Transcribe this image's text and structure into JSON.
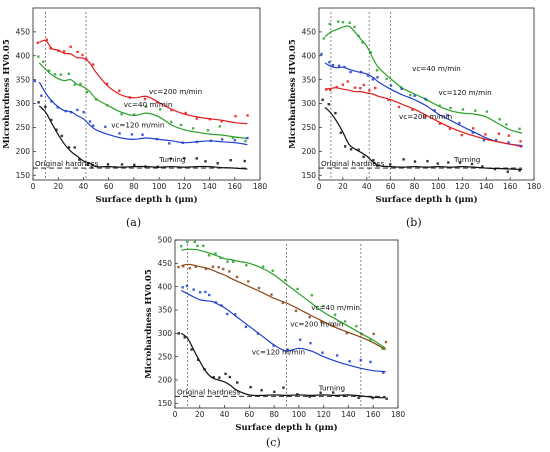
{
  "chart_data": [
    {
      "type": "line",
      "panel_label": "(a)",
      "xlabel": "Surface depth h (μm)",
      "ylabel": "Microhardness HV0.05",
      "xlim": [
        0,
        180
      ],
      "ylim": [
        140,
        500
      ],
      "xticks": [
        0,
        20,
        40,
        60,
        80,
        100,
        120,
        140,
        160,
        180
      ],
      "yticks": [
        150,
        200,
        250,
        300,
        350,
        400,
        450
      ],
      "original_hardness": 165,
      "original_hardness_label": "Original hardness",
      "vlines": [
        10,
        42
      ],
      "series": [
        {
          "name": "vc=200 m/min",
          "color": "#e41a1c",
          "x": [
            5,
            10,
            15,
            20,
            25,
            30,
            35,
            40,
            45,
            50,
            60,
            70,
            80,
            90,
            100,
            110,
            120,
            130,
            140,
            150,
            160,
            170
          ],
          "y": [
            428,
            432,
            415,
            412,
            405,
            404,
            396,
            395,
            385,
            365,
            335,
            318,
            312,
            315,
            302,
            288,
            278,
            272,
            268,
            265,
            260,
            258
          ],
          "label_at": [
            92,
            320
          ]
        },
        {
          "name": "vc=40 m/min",
          "color": "#2aa02a",
          "x": [
            5,
            10,
            15,
            20,
            25,
            30,
            35,
            40,
            45,
            50,
            60,
            70,
            80,
            90,
            100,
            110,
            120,
            130,
            140,
            150,
            160,
            170
          ],
          "y": [
            385,
            372,
            360,
            352,
            348,
            350,
            340,
            335,
            325,
            310,
            295,
            282,
            275,
            280,
            272,
            255,
            245,
            240,
            236,
            234,
            230,
            227
          ],
          "label_at": [
            72,
            293
          ]
        },
        {
          "name": "vc=120 m/min",
          "color": "#1f3fd0",
          "x": [
            5,
            10,
            15,
            20,
            25,
            30,
            35,
            40,
            45,
            50,
            60,
            70,
            80,
            90,
            100,
            110,
            120,
            130,
            140,
            150,
            160,
            170
          ],
          "y": [
            345,
            322,
            305,
            293,
            285,
            283,
            275,
            268,
            255,
            245,
            235,
            228,
            225,
            228,
            225,
            222,
            218,
            220,
            222,
            220,
            218,
            214
          ],
          "label_at": [
            62,
            250
          ]
        },
        {
          "name": "Turning",
          "color": "#111111",
          "x": [
            5,
            10,
            15,
            20,
            25,
            30,
            35,
            40,
            45,
            50,
            60,
            70,
            80,
            90,
            100,
            110,
            120,
            130,
            140,
            150,
            160,
            170
          ],
          "y": [
            295,
            282,
            258,
            235,
            215,
            200,
            190,
            180,
            175,
            168,
            168,
            167,
            168,
            168,
            167,
            168,
            167,
            168,
            168,
            166,
            165,
            163
          ],
          "label_at": [
            100,
            178
          ]
        }
      ]
    },
    {
      "type": "line",
      "panel_label": "(b)",
      "xlabel": "Surface depth h (μm)",
      "ylabel": "Microhardness HV0.05",
      "xlim": [
        0,
        180
      ],
      "ylim": [
        140,
        500
      ],
      "xticks": [
        0,
        20,
        40,
        60,
        80,
        100,
        120,
        140,
        160,
        180
      ],
      "yticks": [
        150,
        200,
        250,
        300,
        350,
        400,
        450
      ],
      "original_hardness": 165,
      "original_hardness_label": "Original hardness",
      "vlines": [
        10,
        42,
        60
      ],
      "series": [
        {
          "name": "vc=40 m/min",
          "color": "#2aa02a",
          "x": [
            5,
            10,
            15,
            20,
            25,
            30,
            35,
            40,
            45,
            50,
            60,
            70,
            80,
            90,
            100,
            110,
            120,
            130,
            140,
            150,
            160,
            170
          ],
          "y": [
            440,
            450,
            455,
            460,
            462,
            450,
            435,
            420,
            395,
            375,
            352,
            332,
            320,
            308,
            295,
            285,
            280,
            278,
            272,
            258,
            245,
            238
          ],
          "label_at": [
            78,
            368
          ]
        },
        {
          "name": "vc=120 m/min",
          "color": "#1f3fd0",
          "x": [
            5,
            10,
            15,
            20,
            25,
            30,
            35,
            40,
            45,
            50,
            60,
            70,
            80,
            90,
            100,
            110,
            120,
            130,
            140,
            150,
            160,
            170
          ],
          "y": [
            385,
            378,
            375,
            376,
            372,
            368,
            365,
            362,
            355,
            345,
            330,
            318,
            308,
            295,
            278,
            265,
            252,
            240,
            228,
            220,
            215,
            212
          ],
          "label_at": [
            100,
            318
          ]
        },
        {
          "name": "vc=200 m/min",
          "color": "#e41a1c",
          "x": [
            5,
            10,
            15,
            20,
            25,
            30,
            35,
            40,
            45,
            50,
            60,
            70,
            80,
            90,
            100,
            110,
            120,
            130,
            140,
            150,
            160,
            170
          ],
          "y": [
            330,
            332,
            333,
            330,
            328,
            325,
            325,
            322,
            320,
            315,
            308,
            298,
            288,
            275,
            262,
            250,
            240,
            232,
            225,
            220,
            215,
            210
          ],
          "label_at": [
            67,
            268
          ]
        },
        {
          "name": "Turning",
          "color": "#111111",
          "x": [
            5,
            10,
            15,
            20,
            25,
            30,
            35,
            40,
            45,
            50,
            60,
            70,
            80,
            90,
            100,
            110,
            120,
            130,
            140,
            150,
            160,
            170
          ],
          "y": [
            292,
            280,
            262,
            240,
            215,
            205,
            198,
            190,
            178,
            170,
            168,
            167,
            168,
            167,
            168,
            167,
            168,
            167,
            165,
            164,
            163,
            162
          ],
          "label_at": [
            113,
            178
          ]
        }
      ]
    },
    {
      "type": "line",
      "panel_label": "(c)",
      "xlabel": "Surface depth h (μm)",
      "ylabel": "Microhardness HV0.05",
      "xlim": [
        0,
        180
      ],
      "ylim": [
        140,
        500
      ],
      "xticks": [
        0,
        20,
        40,
        60,
        80,
        100,
        120,
        140,
        160,
        180
      ],
      "yticks": [
        150,
        200,
        250,
        300,
        350,
        400,
        450,
        500
      ],
      "original_hardness": 165,
      "original_hardness_label": "Original hardness",
      "vlines": [
        10,
        90,
        150
      ],
      "series": [
        {
          "name": "vc=40 m/min",
          "color": "#2aa02a",
          "x": [
            5,
            10,
            15,
            20,
            25,
            30,
            35,
            40,
            45,
            50,
            60,
            70,
            80,
            90,
            100,
            110,
            120,
            130,
            140,
            150,
            160,
            170
          ],
          "y": [
            478,
            480,
            480,
            478,
            474,
            470,
            465,
            460,
            458,
            455,
            450,
            440,
            425,
            405,
            385,
            365,
            345,
            330,
            315,
            300,
            285,
            268
          ],
          "label_at": [
            110,
            350
          ]
        },
        {
          "name": "vc=200 m/min",
          "color": "#8b4513",
          "x": [
            5,
            10,
            15,
            20,
            25,
            30,
            35,
            40,
            45,
            50,
            60,
            70,
            80,
            90,
            100,
            110,
            120,
            130,
            140,
            150,
            160,
            170
          ],
          "y": [
            445,
            448,
            446,
            443,
            440,
            436,
            430,
            425,
            418,
            412,
            400,
            388,
            375,
            365,
            352,
            338,
            325,
            312,
            302,
            292,
            280,
            265
          ],
          "label_at": [
            93,
            315
          ]
        },
        {
          "name": "vc=120 m/min",
          "color": "#1f3fd0",
          "x": [
            5,
            10,
            15,
            20,
            25,
            30,
            35,
            40,
            45,
            50,
            60,
            70,
            80,
            90,
            100,
            110,
            120,
            130,
            140,
            150,
            160,
            170
          ],
          "y": [
            392,
            385,
            378,
            372,
            370,
            368,
            362,
            355,
            345,
            335,
            315,
            295,
            275,
            262,
            268,
            262,
            250,
            240,
            232,
            225,
            220,
            218
          ],
          "label_at": [
            62,
            255
          ]
        },
        {
          "name": "Turning",
          "color": "#111111",
          "x": [
            5,
            10,
            15,
            20,
            25,
            30,
            35,
            40,
            45,
            50,
            60,
            70,
            80,
            90,
            100,
            110,
            120,
            130,
            140,
            150,
            160,
            170
          ],
          "y": [
            300,
            290,
            265,
            240,
            218,
            205,
            200,
            196,
            188,
            178,
            168,
            167,
            168,
            167,
            168,
            167,
            168,
            167,
            168,
            166,
            163,
            162
          ],
          "label_at": [
            116,
            178
          ]
        }
      ]
    }
  ]
}
